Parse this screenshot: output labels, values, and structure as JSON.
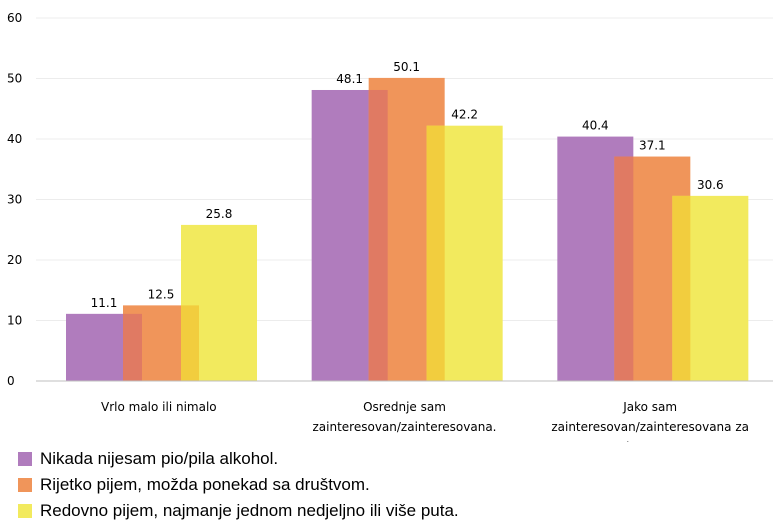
{
  "chart_data": {
    "type": "bar",
    "categories": [
      [
        "Vrlo malo ili nimalo"
      ],
      [
        "Osrednje sam",
        "zainteresovan/zainteresovana."
      ],
      [
        "Jako sam",
        "zainteresovan/zainteresovana za",
        "takve teme."
      ]
    ],
    "series": [
      {
        "name": "Nikada nijesam pio/pila alkohol.",
        "values": [
          11.1,
          48.1,
          40.4
        ],
        "color": "#b07cbd"
      },
      {
        "name": "Rijetko pijem, možda ponekad sa društvom.",
        "values": [
          12.5,
          50.1,
          37.1
        ],
        "color": "#f0955a"
      },
      {
        "name": "Redovno pijem, najmanje jednom nedjeljno ili više puta.",
        "values": [
          25.8,
          42.2,
          30.6
        ],
        "color": "#f2ea5e"
      }
    ],
    "overlap_colors": [
      "#e07a63",
      "#f2cd3e"
    ],
    "yticks": [
      0,
      10,
      20,
      30,
      40,
      50,
      60
    ],
    "ylim": [
      0,
      60
    ],
    "grid": true,
    "legend": "bottom-left"
  }
}
